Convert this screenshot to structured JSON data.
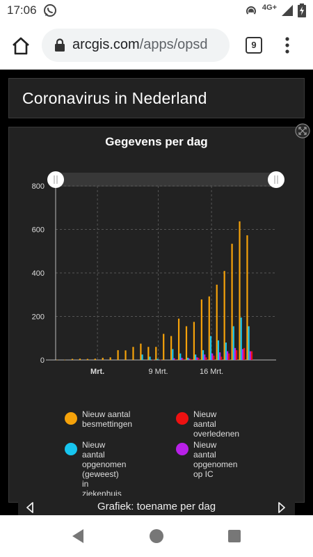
{
  "status_bar": {
    "time": "17:06",
    "network": "4G+"
  },
  "browser": {
    "url_domain": "arcgis.com",
    "url_path": "/apps/opsd",
    "tab_count": "9"
  },
  "dashboard": {
    "title": "Coronavirus in Nederland",
    "chart_title": "Gegevens per dag",
    "bottom_label": "Grafiek: toename per dag"
  },
  "legend": [
    {
      "label_lines": [
        "Nieuw aantal",
        "besmettingen"
      ],
      "color": "#f5a20a"
    },
    {
      "label_lines": [
        "Nieuw aantal",
        "overledenen"
      ],
      "color": "#ee1111"
    },
    {
      "label_lines": [
        "Nieuw aantal",
        "opgenomen (geweest)",
        "in ziekenhuis"
      ],
      "color": "#17c5ef"
    },
    {
      "label_lines": [
        "Nieuw aantal",
        "opgenomen op IC"
      ],
      "color": "#b820e8"
    }
  ],
  "chart_data": {
    "type": "bar",
    "title": "Gegevens per dag",
    "ylim": [
      0,
      800
    ],
    "y_ticks": [
      0,
      200,
      400,
      600,
      800
    ],
    "x_tick_labels": [
      {
        "label": "Mrt.",
        "day": 1,
        "bold": true
      },
      {
        "label": "9 Mrt.",
        "day": 9,
        "bold": false
      },
      {
        "label": "16 Mrt.",
        "day": 16,
        "bold": false
      }
    ],
    "days": [
      -4,
      -3,
      -2,
      -1,
      0,
      1,
      2,
      3,
      4,
      5,
      6,
      7,
      8,
      9,
      10,
      11,
      12,
      13,
      14,
      15,
      16,
      17,
      18,
      19,
      20,
      21,
      22,
      23,
      24
    ],
    "grid": true,
    "series": [
      {
        "name": "Nieuw aantal besmettingen",
        "color": "#f5a20a",
        "values": [
          1,
          1,
          5,
          6,
          5,
          6,
          10,
          12,
          45,
          44,
          60,
          75,
          60,
          60,
          120,
          110,
          190,
          155,
          175,
          278,
          292,
          346,
          409,
          534,
          637,
          573
        ]
      },
      {
        "name": "Nieuw aantal opgenomen (geweest) in ziekenhuis",
        "color": "#17c5ef",
        "values": [
          0,
          0,
          0,
          0,
          0,
          0,
          0,
          0,
          0,
          0,
          0,
          25,
          15,
          5,
          0,
          50,
          30,
          10,
          25,
          45,
          110,
          90,
          80,
          155,
          195,
          155
        ]
      },
      {
        "name": "Nieuw aantal opgenomen op IC",
        "color": "#b820e8",
        "values": [
          0,
          0,
          0,
          0,
          0,
          0,
          0,
          0,
          0,
          0,
          0,
          0,
          0,
          0,
          0,
          8,
          10,
          6,
          12,
          25,
          30,
          35,
          40,
          55,
          50,
          40
        ]
      },
      {
        "name": "Nieuw aantal overledenen",
        "color": "#ee1111",
        "values": [
          0,
          0,
          0,
          0,
          0,
          0,
          0,
          0,
          0,
          0,
          0,
          0,
          1,
          1,
          0,
          3,
          5,
          4,
          10,
          12,
          20,
          15,
          30,
          45,
          55,
          40
        ]
      }
    ]
  }
}
